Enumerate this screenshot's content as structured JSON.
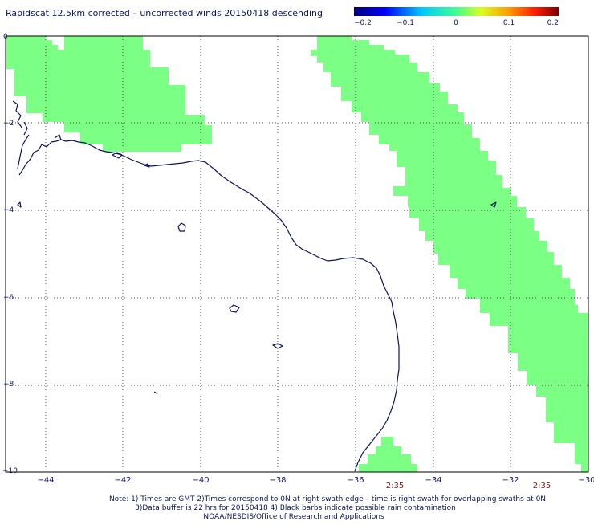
{
  "title": "Rapidscat 12.5km corrected – uncorrected winds 20150418 descending",
  "colorbar": {
    "ticks": [
      "−0.2",
      "−0.1",
      "0",
      "0.1",
      "0.2"
    ]
  },
  "map": {
    "x_ticks": [
      "−44",
      "−42",
      "−40",
      "−38",
      "−36",
      "−34",
      "−32",
      "−30"
    ],
    "y_ticks": [
      "0",
      "−2",
      "−4",
      "−6",
      "−8",
      "−10"
    ],
    "swath_times": [
      "2:35",
      "2:35"
    ],
    "colors": {
      "swath": "#7bff85",
      "coast": "#0a1560",
      "time_label": "#a01010",
      "grid": "#444444"
    }
  },
  "notes": {
    "line1": "Note: 1) Times are GMT 2)Times correspond to 0N at right swath edge – time is right swath for overlapping swaths at 0N",
    "line2": "3)Data buffer is 22 hrs for 20150418 4) Black barbs indicate possible rain contamination",
    "line3": "NOAA/NESDIS/Office of Research and Applications"
  }
}
